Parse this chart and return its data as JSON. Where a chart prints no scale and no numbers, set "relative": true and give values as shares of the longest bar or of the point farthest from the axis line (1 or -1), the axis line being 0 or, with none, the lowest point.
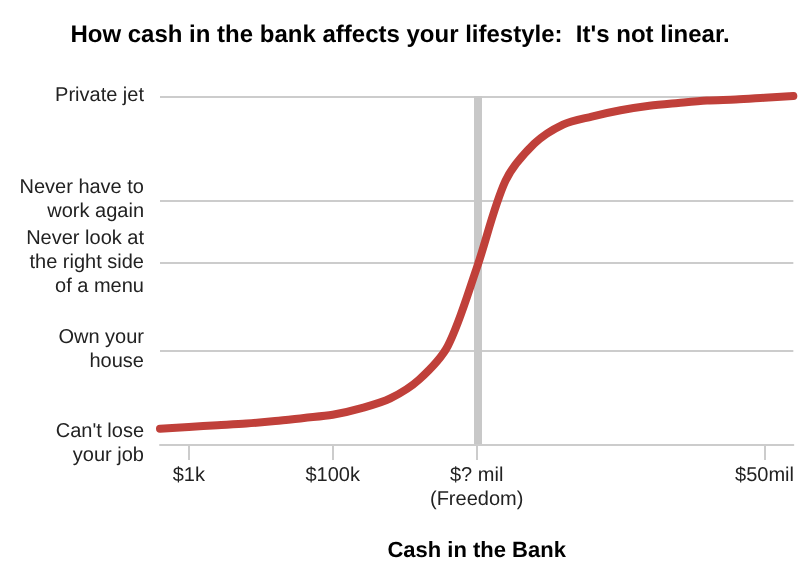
{
  "chart_data": {
    "type": "line",
    "title": "How cash in the bank affects your lifestyle:  It's not linear.",
    "xlabel": "Cash in the Bank",
    "relative": true,
    "categories": [
      null,
      "$1k",
      null,
      null,
      null,
      null,
      "$100k",
      null,
      null,
      null,
      null,
      "$? mil\n(Freedom)",
      null,
      null,
      null,
      null,
      null,
      null,
      null,
      null,
      null,
      "$50mil",
      null
    ],
    "series": [
      {
        "color": "#c0403a",
        "values": [
          0.044,
          0.049,
          0.054,
          0.059,
          0.066,
          0.075,
          0.084,
          0.103,
          0.131,
          0.185,
          0.282,
          0.505,
          0.756,
          0.863,
          0.918,
          0.941,
          0.959,
          0.972,
          0.98,
          0.987,
          0.99,
          0.995,
          1
        ]
      }
    ],
    "ref_lines": [
      {
        "axis": "y",
        "value": 0,
        "label": "Can't lose\nyour job",
        "color": "#cccccc"
      },
      {
        "axis": "y",
        "value": 0.268,
        "label": "Own your\nhouse",
        "color": "#cccccc"
      },
      {
        "axis": "y",
        "value": 0.518,
        "label": "Never look at\nthe right side\nof a menu",
        "color": "#cccccc"
      },
      {
        "axis": "y",
        "value": 0.702,
        "label": "Never have to\nwork again",
        "color": "#cccccc"
      },
      {
        "axis": "y",
        "value": 1,
        "label": "Private jet",
        "color": "#cccccc"
      },
      {
        "axis": "x",
        "value": "$? mil\n(Freedom)",
        "color": "#c8c8c8"
      }
    ],
    "marker": "none",
    "line_style": "solid"
  }
}
